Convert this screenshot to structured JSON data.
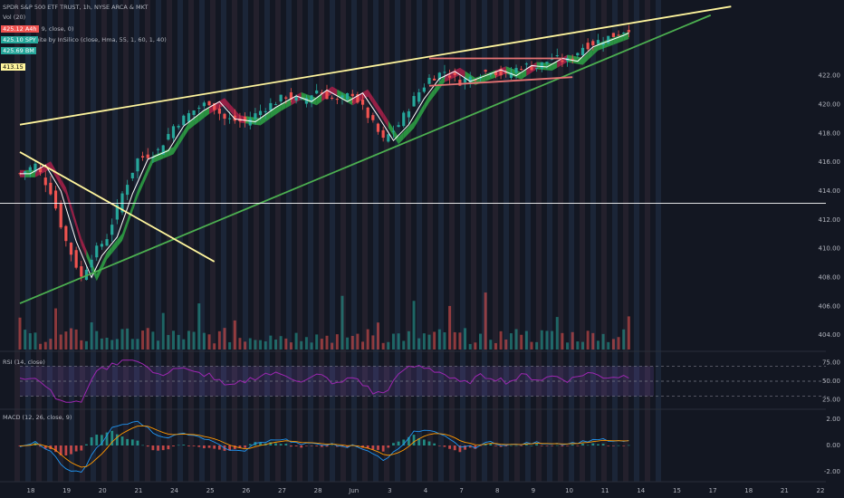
{
  "header": {
    "symbol_line": "SPDR S&P 500 ETF TRUST, 1h, NYSE ARCA & MKT",
    "vol_line": "Vol (20)",
    "ma_line": "…, 9, close, 0)",
    "suite_line": "Suite by InSilico (close, Hma, 55, 1, 60, 1, 40)",
    "rsi_line": "RSI (14, close)",
    "macd_line": "MACD (12, 26, close, 9)"
  },
  "price_pills": [
    {
      "value": "425.12",
      "tag": "A4h",
      "color": "#ef5350"
    },
    {
      "value": "425.10",
      "tag": "SPY",
      "color": "#26a69a"
    },
    {
      "value": "425.69",
      "tag": "BM",
      "color": "#26a69a"
    }
  ],
  "current_price_label": "413.15",
  "colors": {
    "background": "#131722",
    "up": "#26a69a",
    "down": "#ef5350",
    "trend_yellow": "#fff59d",
    "trend_green": "#4caf50",
    "channel_red": "#e57373",
    "hma_green": "#2e9e44",
    "hma_red": "#a32048",
    "rsi": "#9c27b0",
    "macd": "#2196f3",
    "signal": "#ff9800"
  },
  "chart_data": [
    {
      "type": "candlestick",
      "ylim": [
        403,
        427
      ],
      "y_ticks": [
        "404.00",
        "406.00",
        "408.00",
        "410.00",
        "412.00",
        "414.00",
        "416.00",
        "418.00",
        "420.00",
        "422.00"
      ],
      "x_ticks": [
        "18",
        "19",
        "20",
        "21",
        "24",
        "25",
        "26",
        "27",
        "28",
        "Jun",
        "3",
        "4",
        "7",
        "8",
        "9",
        "10",
        "11",
        "14",
        "15",
        "17",
        "18",
        "21",
        "22"
      ],
      "close_path": [
        [
          0,
          415.2
        ],
        [
          3,
          415.8
        ],
        [
          6,
          414.0
        ],
        [
          9,
          410.5
        ],
        [
          12,
          408.0
        ],
        [
          14,
          409.5
        ],
        [
          17,
          410.8
        ],
        [
          20,
          413.8
        ],
        [
          23,
          416.2
        ],
        [
          27,
          416.8
        ],
        [
          30,
          418.5
        ],
        [
          34,
          419.6
        ],
        [
          37,
          420.2
        ],
        [
          40,
          419.0
        ],
        [
          44,
          418.8
        ],
        [
          48,
          419.8
        ],
        [
          52,
          420.6
        ],
        [
          55,
          420.2
        ],
        [
          58,
          421.0
        ],
        [
          62,
          420.2
        ],
        [
          65,
          420.8
        ],
        [
          68,
          419.2
        ],
        [
          71,
          417.5
        ],
        [
          74,
          418.6
        ],
        [
          77,
          420.4
        ],
        [
          80,
          421.8
        ],
        [
          83,
          422.3
        ],
        [
          86,
          421.6
        ],
        [
          89,
          422.0
        ],
        [
          92,
          422.4
        ],
        [
          95,
          422.0
        ],
        [
          98,
          422.7
        ],
        [
          101,
          422.6
        ],
        [
          104,
          423.2
        ],
        [
          107,
          423.0
        ],
        [
          110,
          424.0
        ],
        [
          113,
          424.4
        ],
        [
          116,
          424.8
        ],
        [
          119,
          425.3
        ]
      ],
      "trendlines": [
        {
          "name": "upper resistance",
          "color": "#fff59d",
          "from": [
            0,
            418.6
          ],
          "to": [
            139,
            426.8
          ]
        },
        {
          "name": "lower support",
          "color": "#4caf50",
          "from": [
            0,
            406.2
          ],
          "to": [
            135,
            426.2
          ]
        },
        {
          "name": "down trendline",
          "color": "#fff59d",
          "from": [
            0,
            416.7
          ],
          "to": [
            38,
            409.1
          ]
        },
        {
          "name": "channel top",
          "color": "#e57373",
          "from": [
            80,
            423.2
          ],
          "to": [
            106,
            423.2
          ]
        },
        {
          "name": "channel bottom",
          "color": "#e57373",
          "from": [
            80,
            421.3
          ],
          "to": [
            108,
            421.9
          ]
        }
      ],
      "horizontal_line": 413.15
    },
    {
      "type": "line",
      "name": "RSI (14, close)",
      "ylim": [
        15,
        85
      ],
      "y_ticks": [
        "75.00",
        "50.00",
        "25.00"
      ],
      "bands": [
        70,
        50,
        30
      ]
    },
    {
      "type": "bar",
      "name": "MACD (12, 26, close, 9)",
      "ylim": [
        -2.6,
        2.6
      ],
      "y_ticks": [
        "2.00",
        "0.00",
        "-2.00"
      ]
    }
  ]
}
